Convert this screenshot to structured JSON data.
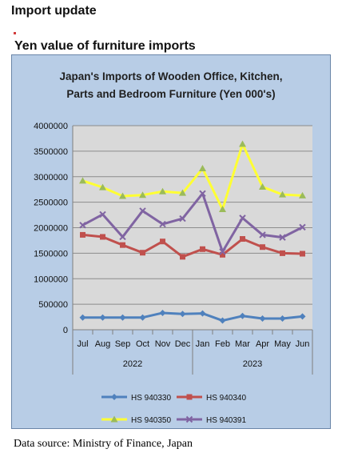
{
  "header": {
    "title": "Import update",
    "subtitle": "Yen value of furniture imports"
  },
  "footer": {
    "source": "Data source: Ministry of Finance, Japan"
  },
  "chart_data": {
    "type": "line",
    "title_lines": [
      "Japan's Imports of  Wooden  Office, Kitchen,",
      "Parts and Bedroom Furniture (Yen 000's)"
    ],
    "categories": [
      "Jul",
      "Aug",
      "Sep",
      "Oct",
      "Nov",
      "Dec",
      "Jan",
      "Feb",
      "Mar",
      "Apr",
      "May",
      "Jun"
    ],
    "year_groups": [
      {
        "label": "2022",
        "count": 6
      },
      {
        "label": "2023",
        "count": 6
      }
    ],
    "ylim": [
      0,
      4000000
    ],
    "yticks": [
      0,
      500000,
      1000000,
      1500000,
      2000000,
      2500000,
      3000000,
      3500000,
      4000000
    ],
    "ytick_labels": [
      "0",
      "500000",
      "1000000",
      "1500000",
      "2000000",
      "2500000",
      "3000000",
      "3500000",
      "4000000"
    ],
    "grid": true,
    "legend_position": "bottom",
    "series": [
      {
        "name": "HS 940330",
        "color": "#4f81bd",
        "marker": "diamond",
        "values": [
          240000,
          240000,
          240000,
          240000,
          330000,
          310000,
          320000,
          180000,
          270000,
          220000,
          220000,
          260000
        ]
      },
      {
        "name": "HS 940340",
        "color": "#c0504d",
        "marker": "square",
        "values": [
          1860000,
          1820000,
          1660000,
          1510000,
          1730000,
          1430000,
          1580000,
          1470000,
          1780000,
          1620000,
          1500000,
          1490000
        ]
      },
      {
        "name": "HS 940350",
        "color": "#ffff33",
        "marker": "triangle",
        "values": [
          2920000,
          2790000,
          2620000,
          2640000,
          2710000,
          2680000,
          3160000,
          2360000,
          3640000,
          2800000,
          2650000,
          2630000
        ]
      },
      {
        "name": "HS 940391",
        "color": "#8064a2",
        "marker": "x",
        "values": [
          2050000,
          2260000,
          1820000,
          2330000,
          2070000,
          2180000,
          2670000,
          1530000,
          2190000,
          1860000,
          1810000,
          2010000
        ]
      }
    ]
  }
}
